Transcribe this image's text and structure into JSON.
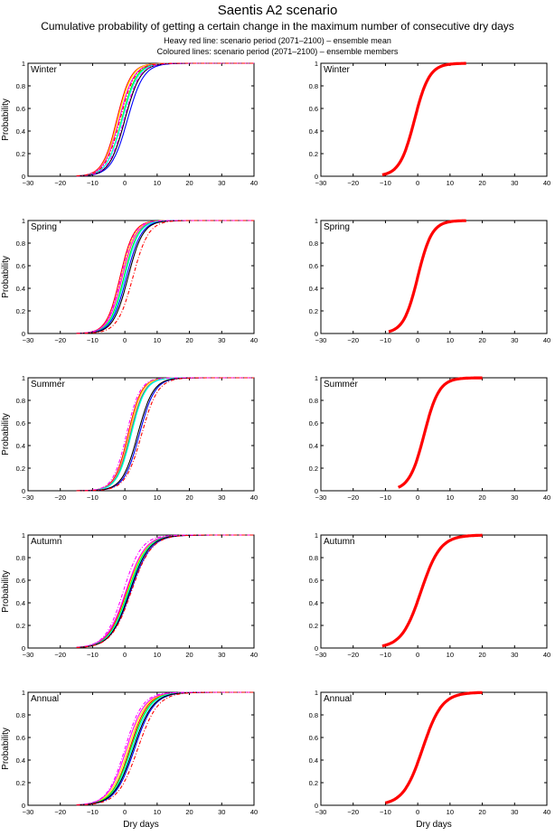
{
  "header": {
    "title": "Saentis A2 scenario",
    "subtitle": "Cumulative probability of getting a certain change in the maximum number of consecutive dry days",
    "note1": "Heavy red line: scenario period (2071–2100) – ensemble mean",
    "note2": "Coloured lines: scenario period (2071–2100) – ensemble members"
  },
  "chart_data": {
    "type": "line",
    "xlabel": "Dry days",
    "ylabel": "Probability",
    "xlim": [
      -30,
      40
    ],
    "ylim": [
      0,
      1
    ],
    "xticks": [
      "-30",
      "-20",
      "-10",
      "0",
      "10",
      "20",
      "30",
      "40"
    ],
    "yticks": [
      "0",
      "0.2",
      "0.4",
      "0.6",
      "0.8",
      "1"
    ],
    "curve_model": "logistic CDF described by median and scale (days)",
    "colors": {
      "mean": "#ff0000",
      "members": [
        "#ff0000",
        "#ffff00",
        "#ff00ff",
        "#00ff00",
        "#00ffff",
        "#0000ff",
        "#000000",
        "#ff00ff",
        "#ff0000"
      ]
    },
    "panels": [
      {
        "season": "Winter",
        "mean": {
          "median": -1,
          "scale": 2.3,
          "range": [
            -11,
            15
          ]
        },
        "members": [
          {
            "median": -2.5,
            "scale": 2.2
          },
          {
            "median": -2.2,
            "scale": 2.2
          },
          {
            "median": -1.8,
            "scale": 2.3
          },
          {
            "median": -1,
            "scale": 2.3
          },
          {
            "median": -0.8,
            "scale": 2.4
          },
          {
            "median": 0.8,
            "scale": 2.5
          },
          {
            "median": 0,
            "scale": 2.4
          },
          {
            "median": -0.3,
            "scale": 2.4,
            "dash": true
          },
          {
            "median": -1.5,
            "scale": 2.3,
            "dash": true
          }
        ]
      },
      {
        "season": "Spring",
        "mean": {
          "median": 0,
          "scale": 2.2,
          "range": [
            -9,
            15
          ]
        },
        "members": [
          {
            "median": -1.5,
            "scale": 2.1
          },
          {
            "median": -1,
            "scale": 2.1
          },
          {
            "median": -0.8,
            "scale": 2.2
          },
          {
            "median": -0.3,
            "scale": 2.2
          },
          {
            "median": 0,
            "scale": 2.2
          },
          {
            "median": 0.5,
            "scale": 2.3
          },
          {
            "median": 1,
            "scale": 2.3
          },
          {
            "median": -1.2,
            "scale": 2.1,
            "dash": true
          },
          {
            "median": 2.5,
            "scale": 2.4,
            "dash": true
          }
        ]
      },
      {
        "season": "Summer",
        "mean": {
          "median": 2,
          "scale": 2.3,
          "range": [
            -6,
            20
          ]
        },
        "members": [
          {
            "median": 1,
            "scale": 2.1
          },
          {
            "median": 1.3,
            "scale": 2.1
          },
          {
            "median": 1.6,
            "scale": 2.2
          },
          {
            "median": 1.8,
            "scale": 2.2
          },
          {
            "median": 2,
            "scale": 2.2
          },
          {
            "median": 4.5,
            "scale": 2.4
          },
          {
            "median": 4,
            "scale": 2.4
          },
          {
            "median": 0.5,
            "scale": 2.1,
            "dash": true
          },
          {
            "median": 5.2,
            "scale": 2.5,
            "dash": true
          }
        ]
      },
      {
        "season": "Autumn",
        "mean": {
          "median": 1,
          "scale": 3,
          "range": [
            -11,
            20
          ]
        },
        "members": [
          {
            "median": 0.5,
            "scale": 2.9
          },
          {
            "median": 0.8,
            "scale": 2.9
          },
          {
            "median": 0.3,
            "scale": 3
          },
          {
            "median": 1,
            "scale": 3
          },
          {
            "median": 1.2,
            "scale": 3
          },
          {
            "median": 1.8,
            "scale": 3.1
          },
          {
            "median": 1.5,
            "scale": 3
          },
          {
            "median": -0.5,
            "scale": 2.8,
            "dash": true
          },
          {
            "median": 2,
            "scale": 3.1,
            "dash": true
          }
        ]
      },
      {
        "season": "Annual",
        "mean": {
          "median": 1.5,
          "scale": 3,
          "range": [
            -10,
            20
          ]
        },
        "members": [
          {
            "median": 1.5,
            "scale": 2.8
          },
          {
            "median": 1,
            "scale": 2.8
          },
          {
            "median": 0.5,
            "scale": 2.8
          },
          {
            "median": 1.8,
            "scale": 2.9
          },
          {
            "median": 2.2,
            "scale": 2.9
          },
          {
            "median": 3,
            "scale": 3
          },
          {
            "median": 2.6,
            "scale": 3
          },
          {
            "median": 0,
            "scale": 2.7,
            "dash": true
          },
          {
            "median": 4,
            "scale": 3.1,
            "dash": true
          }
        ]
      }
    ]
  }
}
